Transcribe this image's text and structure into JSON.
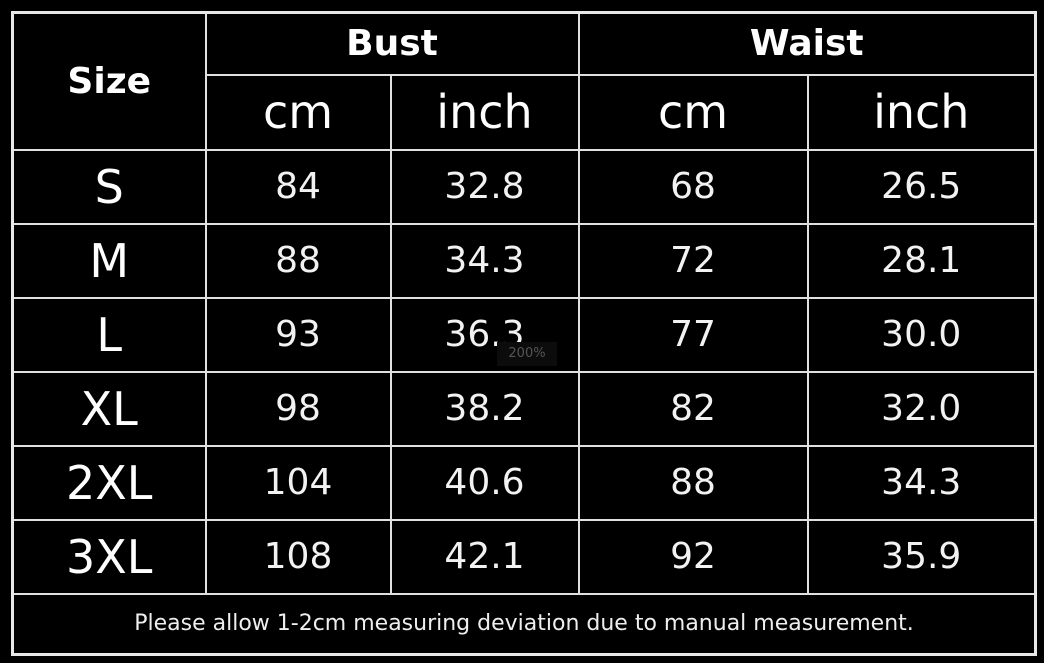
{
  "header": {
    "size": "Size",
    "bust": "Bust",
    "waist": "Waist",
    "units": [
      "cm",
      "inch",
      "cm",
      "inch"
    ]
  },
  "rows": [
    {
      "size": "S",
      "bust_cm": "84",
      "bust_inch": "32.8",
      "waist_cm": "68",
      "waist_inch": "26.5"
    },
    {
      "size": "M",
      "bust_cm": "88",
      "bust_inch": "34.3",
      "waist_cm": "72",
      "waist_inch": "28.1"
    },
    {
      "size": "L",
      "bust_cm": "93",
      "bust_inch": "36.3",
      "waist_cm": "77",
      "waist_inch": "30.0"
    },
    {
      "size": "XL",
      "bust_cm": "98",
      "bust_inch": "38.2",
      "waist_cm": "82",
      "waist_inch": "32.0"
    },
    {
      "size": "2XL",
      "bust_cm": "104",
      "bust_inch": "40.6",
      "waist_cm": "88",
      "waist_inch": "34.3"
    },
    {
      "size": "3XL",
      "bust_cm": "108",
      "bust_inch": "42.1",
      "waist_cm": "92",
      "waist_inch": "35.9"
    }
  ],
  "note": "Please allow 1-2cm measuring deviation due to manual measurement.",
  "zoom_indicator": "200%"
}
